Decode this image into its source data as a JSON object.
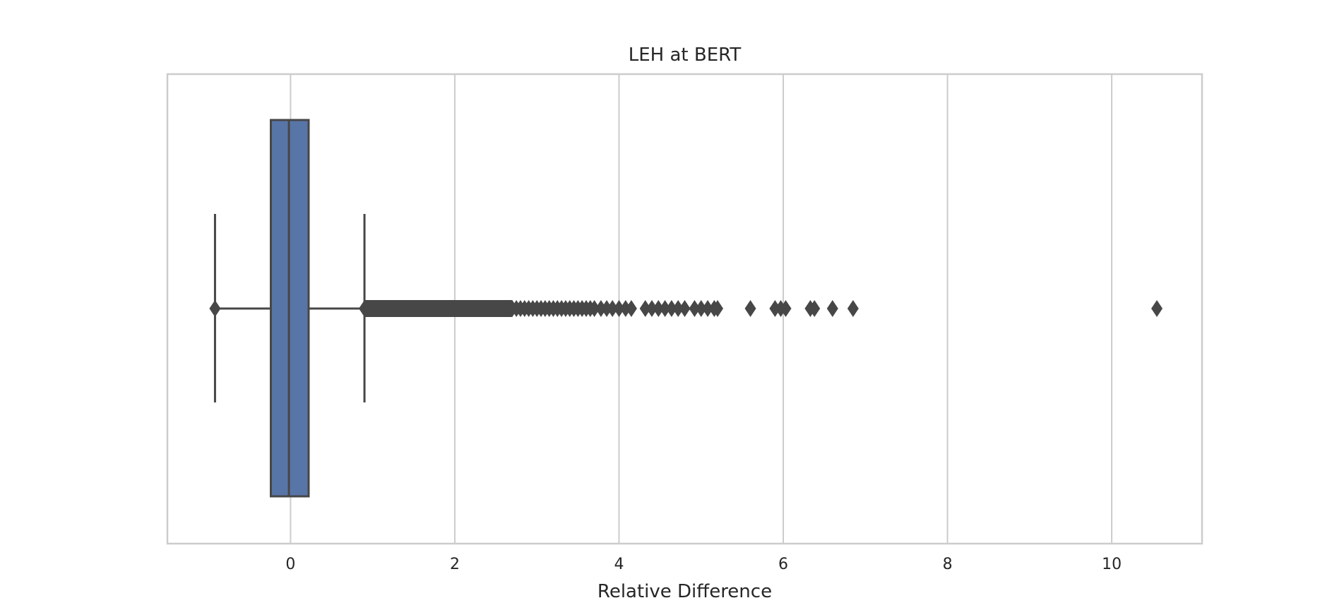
{
  "chart_data": {
    "type": "boxplot",
    "orientation": "horizontal",
    "title": "LEH at BERT",
    "xlabel": "Relative Difference",
    "ylabel": "",
    "xlim": [
      -1.5,
      11.1
    ],
    "xticks": [
      0,
      2,
      4,
      6,
      8,
      10
    ],
    "grid": "vertical",
    "box": {
      "whisker_low": -0.92,
      "q1": -0.24,
      "median": -0.02,
      "q3": 0.22,
      "whisker_high": 0.9
    },
    "outliers_low": [
      -0.92
    ],
    "outlier_band": [
      0.9,
      2.7
    ],
    "outliers_high": [
      2.75,
      2.8,
      2.85,
      2.9,
      2.95,
      3.0,
      3.05,
      3.1,
      3.15,
      3.2,
      3.25,
      3.3,
      3.35,
      3.4,
      3.45,
      3.5,
      3.55,
      3.6,
      3.65,
      3.7,
      3.78,
      3.85,
      3.92,
      4.0,
      4.08,
      4.15,
      4.32,
      4.4,
      4.48,
      4.56,
      4.64,
      4.72,
      4.8,
      4.92,
      5.0,
      5.08,
      5.16,
      5.2,
      5.6,
      5.9,
      5.97,
      6.03,
      6.33,
      6.38,
      6.6,
      6.85,
      10.55
    ],
    "colors": {
      "box_fill": "#5875a8",
      "line": "#474747",
      "grid": "#cccccc",
      "frame": "#cccccc"
    }
  }
}
